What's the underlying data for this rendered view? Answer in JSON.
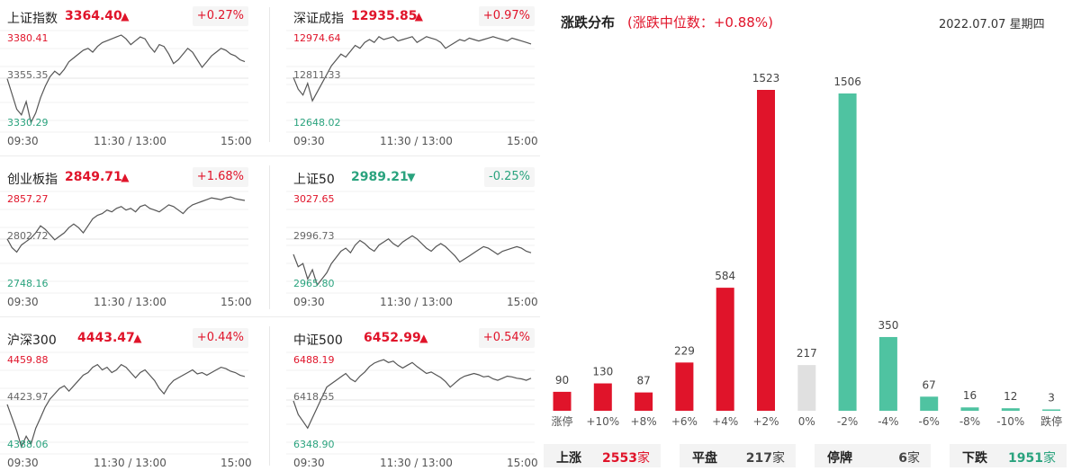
{
  "panels": [
    {
      "name": "上证指数",
      "price": "3364.40",
      "arrow": "▲",
      "change": "+0.27%",
      "dir": "up",
      "ytop": "3380.41",
      "ymid": "3355.35",
      "ybot": "3330.29",
      "x_start": "09:30",
      "x_mid": "11:30 / 13:00",
      "x_end": "15:00",
      "series": [
        3356,
        3348,
        3340,
        3337,
        3344,
        3333,
        3338,
        3346,
        3352,
        3357,
        3360,
        3358,
        3361,
        3365,
        3367,
        3369,
        3371,
        3372,
        3370,
        3373,
        3375,
        3376,
        3377,
        3378,
        3379,
        3377,
        3374,
        3376,
        3378,
        3377,
        3373,
        3370,
        3374,
        3373,
        3369,
        3364,
        3366,
        3369,
        3372,
        3370,
        3366,
        3362,
        3365,
        3368,
        3370,
        3372,
        3371,
        3369,
        3368,
        3366,
        3365
      ]
    },
    {
      "name": "深证成指",
      "price": "12935.85",
      "arrow": "▲",
      "change": "+0.97%",
      "dir": "up",
      "ytop": "12974.64",
      "ymid": "12811.33",
      "ybot": "12648.02",
      "x_start": "09:30",
      "x_mid": "11:30 / 13:00",
      "x_end": "15:00",
      "series": [
        12820,
        12780,
        12760,
        12800,
        12740,
        12770,
        12800,
        12830,
        12860,
        12880,
        12900,
        12890,
        12910,
        12930,
        12920,
        12940,
        12950,
        12940,
        12960,
        12950,
        12955,
        12960,
        12945,
        12950,
        12955,
        12960,
        12940,
        12950,
        12960,
        12955,
        12950,
        12940,
        12920,
        12930,
        12940,
        12950,
        12945,
        12955,
        12950,
        12945,
        12950,
        12955,
        12960,
        12955,
        12950,
        12945,
        12955,
        12950,
        12945,
        12940,
        12935
      ]
    },
    {
      "name": "创业板指",
      "price": "2849.71",
      "arrow": "▲",
      "change": "+1.68%",
      "dir": "up",
      "ytop": "2857.27",
      "ymid": "2802.72",
      "ybot": "2748.16",
      "x_start": "09:30",
      "x_mid": "11:30 / 13:00",
      "x_end": "15:00",
      "series": [
        2805,
        2795,
        2790,
        2798,
        2802,
        2806,
        2812,
        2820,
        2816,
        2810,
        2804,
        2808,
        2812,
        2818,
        2822,
        2818,
        2812,
        2820,
        2828,
        2832,
        2834,
        2838,
        2836,
        2840,
        2842,
        2838,
        2840,
        2836,
        2842,
        2844,
        2840,
        2838,
        2836,
        2840,
        2844,
        2842,
        2838,
        2834,
        2840,
        2844,
        2846,
        2848,
        2850,
        2852,
        2851,
        2850,
        2852,
        2853,
        2851,
        2850,
        2849
      ]
    },
    {
      "name": "上证50",
      "price": "2989.21",
      "arrow": "▼",
      "change": "-0.25%",
      "dir": "down",
      "ytop": "3027.65",
      "ymid": "2996.73",
      "ybot": "2965.80",
      "x_start": "09:30",
      "x_mid": "11:30 / 13:00",
      "x_end": "15:00",
      "series": [
        2988,
        2980,
        2982,
        2972,
        2978,
        2968,
        2972,
        2976,
        2982,
        2986,
        2990,
        2992,
        2989,
        2994,
        2997,
        2995,
        2992,
        2990,
        2994,
        2996,
        2998,
        2995,
        2993,
        2996,
        2998,
        3000,
        2998,
        2995,
        2992,
        2990,
        2993,
        2995,
        2993,
        2990,
        2987,
        2983,
        2985,
        2987,
        2989,
        2991,
        2993,
        2992,
        2990,
        2988,
        2990,
        2991,
        2992,
        2993,
        2992,
        2990,
        2989
      ]
    },
    {
      "name": "沪深300",
      "price": "4443.47",
      "arrow": "▲",
      "change": "+0.44%",
      "dir": "up",
      "ytop": "4459.88",
      "ymid": "4423.97",
      "ybot": "4388.06",
      "x_start": "09:30",
      "x_mid": "11:30 / 13:00",
      "x_end": "15:00",
      "series": [
        4422,
        4412,
        4402,
        4390,
        4398,
        4392,
        4404,
        4412,
        4420,
        4426,
        4430,
        4434,
        4436,
        4432,
        4436,
        4440,
        4444,
        4446,
        4450,
        4452,
        4448,
        4450,
        4446,
        4448,
        4452,
        4450,
        4446,
        4442,
        4446,
        4448,
        4444,
        4440,
        4434,
        4430,
        4436,
        4440,
        4442,
        4444,
        4446,
        4448,
        4445,
        4446,
        4444,
        4446,
        4448,
        4450,
        4449,
        4447,
        4446,
        4444,
        4443
      ]
    },
    {
      "name": "中证500",
      "price": "6452.99",
      "arrow": "▲",
      "change": "+0.54%",
      "dir": "up",
      "ytop": "6488.19",
      "ymid": "6418.55",
      "ybot": "6348.90",
      "x_start": "09:30",
      "x_mid": "11:30 / 13:00",
      "x_end": "15:00",
      "series": [
        6420,
        6400,
        6390,
        6380,
        6395,
        6410,
        6425,
        6440,
        6445,
        6450,
        6455,
        6460,
        6452,
        6448,
        6456,
        6462,
        6470,
        6475,
        6478,
        6480,
        6476,
        6478,
        6472,
        6468,
        6472,
        6476,
        6470,
        6465,
        6460,
        6462,
        6458,
        6454,
        6448,
        6440,
        6446,
        6452,
        6456,
        6458,
        6460,
        6458,
        6455,
        6456,
        6452,
        6450,
        6453,
        6456,
        6455,
        6453,
        6452,
        6450,
        6453
      ]
    }
  ],
  "distribution": {
    "title": "涨跌分布",
    "median_text": "(涨跌中位数：+0.88%)",
    "date": "2022.07.07 星期四"
  },
  "chart_data": {
    "type": "bar",
    "categories": [
      "涨停",
      "+10%",
      "+8%",
      "+6%",
      "+4%",
      "+2%",
      "0%",
      "-2%",
      "-4%",
      "-6%",
      "-8%",
      "-10%",
      "跌停"
    ],
    "values": [
      90,
      130,
      87,
      229,
      584,
      1523,
      217,
      1506,
      350,
      67,
      16,
      12,
      3
    ],
    "colors": [
      "#e0142a",
      "#e0142a",
      "#e0142a",
      "#e0142a",
      "#e0142a",
      "#e0142a",
      "#e0e0e0",
      "#4fc3a1",
      "#4fc3a1",
      "#4fc3a1",
      "#4fc3a1",
      "#4fc3a1",
      "#4fc3a1"
    ],
    "ylim": [
      0,
      1523
    ]
  },
  "summary": [
    {
      "label": "上涨",
      "value": "2553",
      "unit": "家",
      "color": "#e0142a"
    },
    {
      "label": "平盘",
      "value": "217",
      "unit": "家",
      "color": "#444444"
    },
    {
      "label": "停牌",
      "value": "6",
      "unit": "家",
      "color": "#444444"
    },
    {
      "label": "下跌",
      "value": "1951",
      "unit": "家",
      "color": "#2aa37e"
    }
  ],
  "colors": {
    "up": "#e0142a",
    "down": "#2aa37e",
    "flat": "#e0e0e0"
  }
}
